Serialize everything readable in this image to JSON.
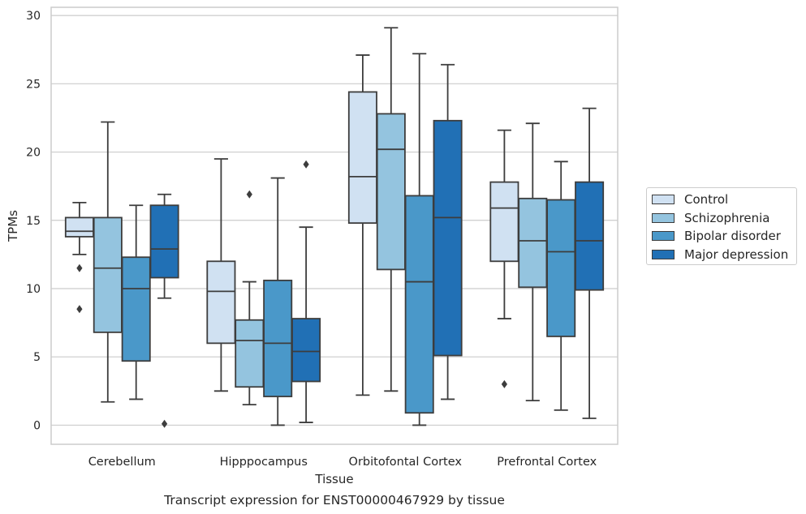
{
  "chart_data": {
    "type": "box",
    "title": "Transcript expression for ENST00000467929 by tissue",
    "xlabel": "Tissue",
    "ylabel": "TPMs",
    "ylim": [
      -1.4,
      30.6
    ],
    "yticks": [
      0,
      5,
      10,
      15,
      20,
      25,
      30
    ],
    "grid": "horizontal",
    "legend_position": "right",
    "categories": [
      "Cerebellum",
      "Hipppocampus",
      "Orbitofontal Cortex",
      "Prefrontal Cortex"
    ],
    "series": [
      {
        "name": "Control",
        "color": "#d0e1f2",
        "boxes": [
          {
            "whisker_low": 12.5,
            "q1": 13.8,
            "median": 14.2,
            "q3": 15.2,
            "whisker_high": 16.3,
            "outliers": [
              11.5,
              8.5
            ]
          },
          {
            "whisker_low": 2.5,
            "q1": 6.0,
            "median": 9.8,
            "q3": 12.0,
            "whisker_high": 19.5,
            "outliers": []
          },
          {
            "whisker_low": 2.2,
            "q1": 14.8,
            "median": 18.2,
            "q3": 24.4,
            "whisker_high": 27.1,
            "outliers": []
          },
          {
            "whisker_low": 7.8,
            "q1": 12.0,
            "median": 15.9,
            "q3": 17.8,
            "whisker_high": 21.6,
            "outliers": [
              3.0
            ]
          }
        ]
      },
      {
        "name": "Schizophrenia",
        "color": "#94c4df",
        "boxes": [
          {
            "whisker_low": 1.7,
            "q1": 6.8,
            "median": 11.5,
            "q3": 15.2,
            "whisker_high": 22.2,
            "outliers": []
          },
          {
            "whisker_low": 1.5,
            "q1": 2.8,
            "median": 6.2,
            "q3": 7.7,
            "whisker_high": 10.5,
            "outliers": [
              16.9
            ]
          },
          {
            "whisker_low": 2.5,
            "q1": 11.4,
            "median": 20.2,
            "q3": 22.8,
            "whisker_high": 29.1,
            "outliers": []
          },
          {
            "whisker_low": 1.8,
            "q1": 10.1,
            "median": 13.5,
            "q3": 16.6,
            "whisker_high": 22.1,
            "outliers": []
          }
        ]
      },
      {
        "name": "Bipolar disorder",
        "color": "#4a98c9",
        "boxes": [
          {
            "whisker_low": 1.9,
            "q1": 4.7,
            "median": 10.0,
            "q3": 12.3,
            "whisker_high": 16.1,
            "outliers": []
          },
          {
            "whisker_low": 0.0,
            "q1": 2.1,
            "median": 6.0,
            "q3": 10.6,
            "whisker_high": 18.1,
            "outliers": []
          },
          {
            "whisker_low": 0.0,
            "q1": 0.9,
            "median": 10.5,
            "q3": 16.8,
            "whisker_high": 27.2,
            "outliers": []
          },
          {
            "whisker_low": 1.1,
            "q1": 6.5,
            "median": 12.7,
            "q3": 16.5,
            "whisker_high": 19.3,
            "outliers": []
          }
        ]
      },
      {
        "name": "Major depression",
        "color": "#2170b5",
        "boxes": [
          {
            "whisker_low": 9.3,
            "q1": 10.8,
            "median": 12.9,
            "q3": 16.1,
            "whisker_high": 16.9,
            "outliers": [
              0.1
            ]
          },
          {
            "whisker_low": 0.2,
            "q1": 3.2,
            "median": 5.4,
            "q3": 7.8,
            "whisker_high": 14.5,
            "outliers": [
              19.1
            ]
          },
          {
            "whisker_low": 1.9,
            "q1": 5.1,
            "median": 15.2,
            "q3": 22.3,
            "whisker_high": 26.4,
            "outliers": []
          },
          {
            "whisker_low": 0.5,
            "q1": 9.9,
            "median": 13.5,
            "q3": 17.8,
            "whisker_high": 23.2,
            "outliers": []
          }
        ]
      }
    ]
  }
}
